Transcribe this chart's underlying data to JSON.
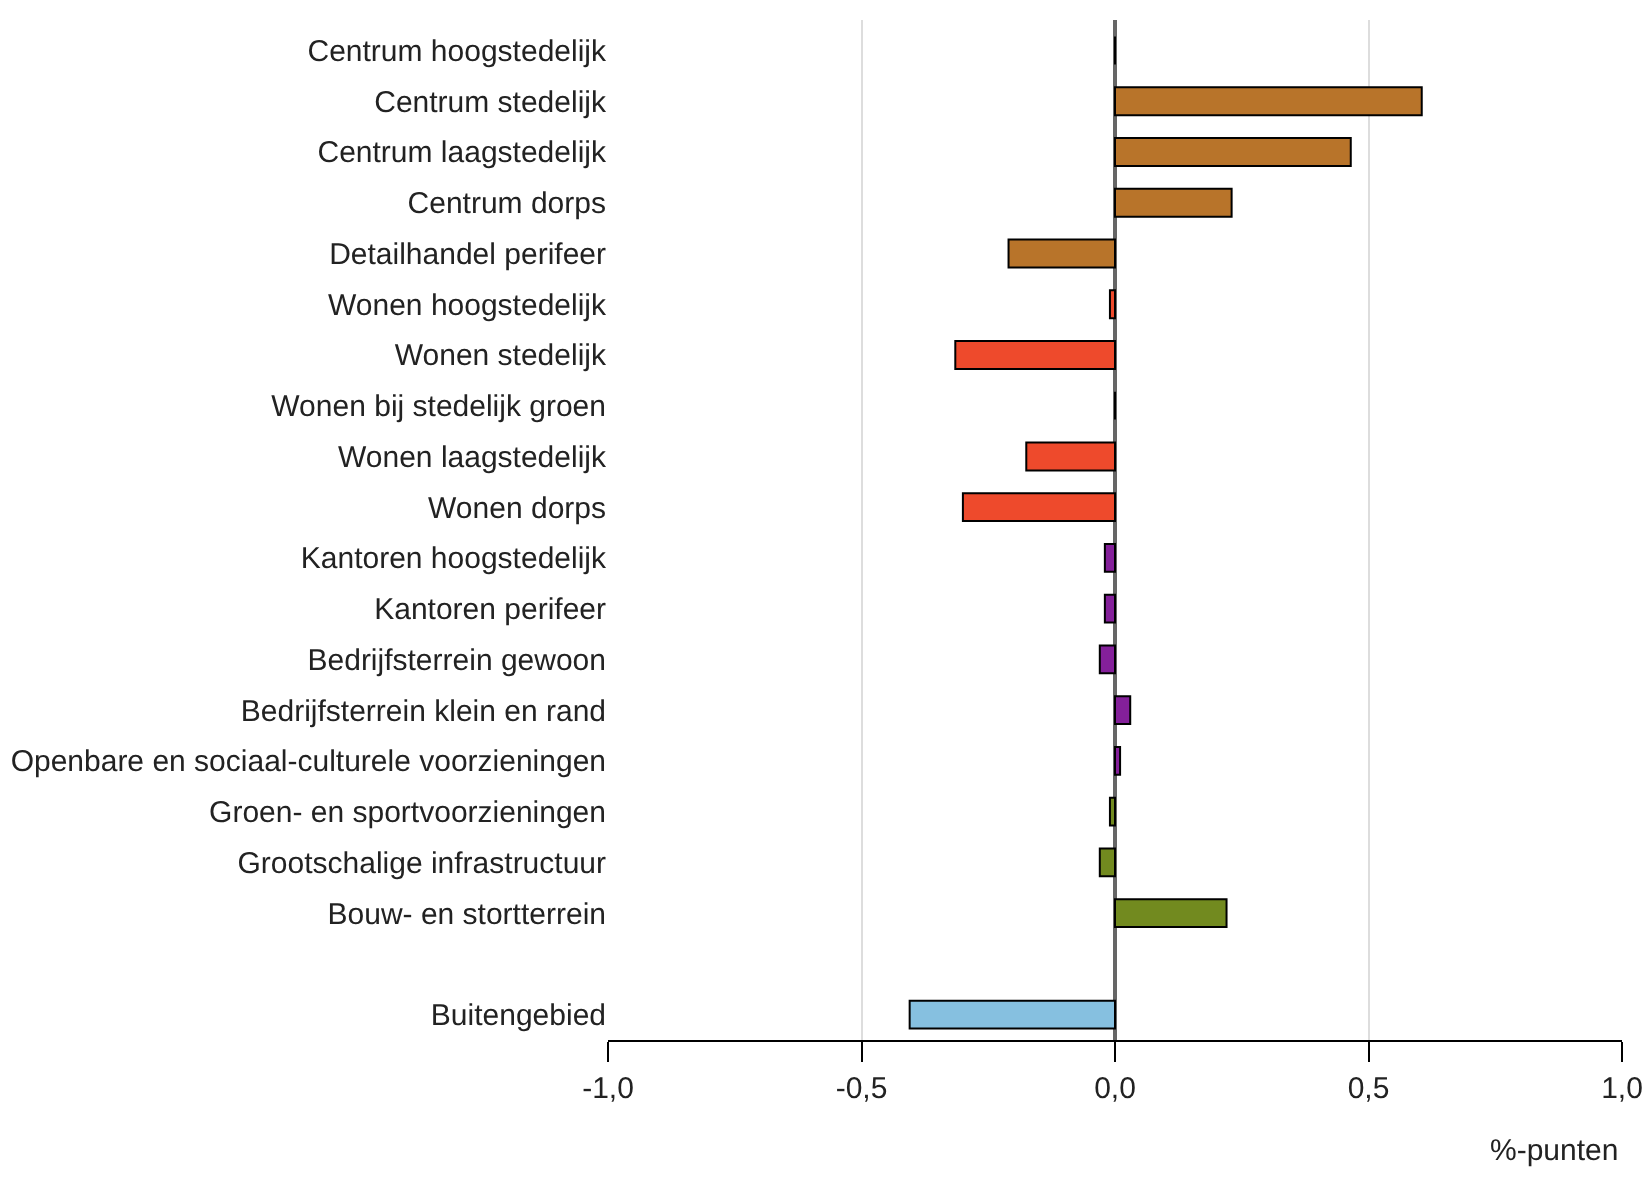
{
  "chart_data": {
    "type": "bar",
    "orientation": "horizontal",
    "xlabel": "%-punten",
    "categories": [
      "Centrum hoogstedelijk",
      "Centrum stedelijk",
      "Centrum laagstedelijk",
      "Centrum dorps",
      "Detailhandel perifeer",
      "Wonen hoogstedelijk",
      "Wonen stedelijk",
      "Wonen bij stedelijk groen",
      "Wonen laagstedelijk",
      "Wonen dorps",
      "Kantoren hoogstedelijk",
      "Kantoren perifeer",
      "Bedrijfsterrein gewoon",
      "Bedrijfsterrein klein en rand",
      "Openbare en sociaal-culturele voorzieningen",
      "Groen- en sportvoorzieningen",
      "Grootschalige infrastructuur",
      "Bouw- en stortterrein",
      null,
      "Buitengebied"
    ],
    "values": [
      0.0,
      0.605,
      0.465,
      0.23,
      -0.21,
      -0.01,
      -0.315,
      0.0,
      -0.175,
      -0.3,
      -0.02,
      -0.02,
      -0.03,
      0.03,
      0.01,
      -0.01,
      -0.03,
      0.22,
      null,
      -0.405
    ],
    "colors": [
      "#000000",
      "#b8742a",
      "#b8742a",
      "#b8742a",
      "#b8742a",
      "#ee4a2c",
      "#ee4a2c",
      "#000000",
      "#ee4a2c",
      "#ee4a2c",
      "#84209a",
      "#84209a",
      "#84209a",
      "#84209a",
      "#84209a",
      "#728a1f",
      "#728a1f",
      "#728a1f",
      null,
      "#86c0e0"
    ],
    "xlim": [
      -1.0,
      1.0
    ],
    "xticks": [
      {
        "value": -1.0,
        "label": "-1,0"
      },
      {
        "value": -0.5,
        "label": "-0,5"
      },
      {
        "value": 0.0,
        "label": "0,0"
      },
      {
        "value": 0.5,
        "label": "0,5"
      },
      {
        "value": 1.0,
        "label": "1,0"
      }
    ],
    "grid": "x",
    "legend": false
  }
}
